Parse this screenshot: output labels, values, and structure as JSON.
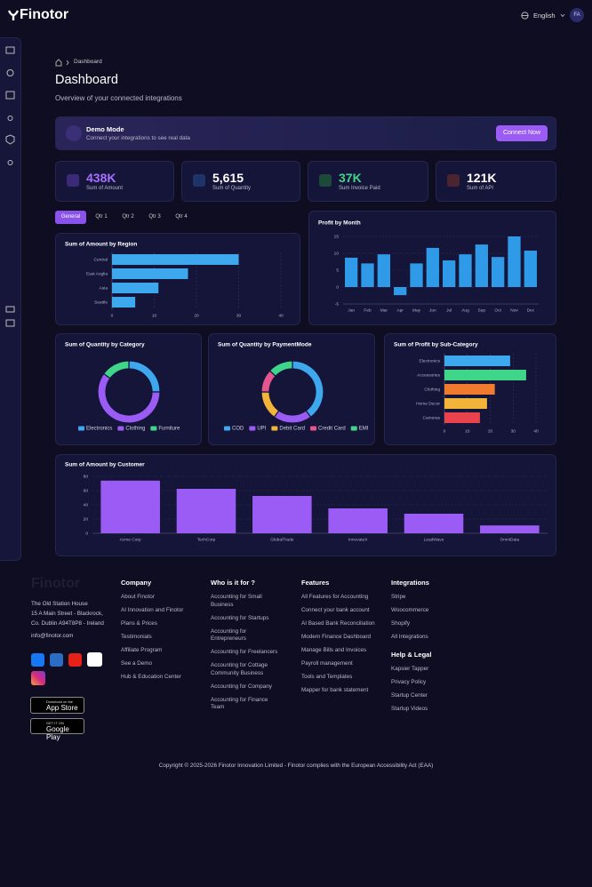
{
  "header": {
    "logo": "Finotor",
    "language": "English",
    "avatar": "FA"
  },
  "breadcrumb": "Dashboard",
  "page": {
    "title": "Dashboard",
    "subtitle": "Overview of your connected integrations"
  },
  "demo": {
    "title": "Demo Mode",
    "text": "Connect your integrations to see real data",
    "button": "Connect Now"
  },
  "kpis": [
    {
      "value": "438K",
      "label": "Sum of Amount",
      "color": "#a970ff"
    },
    {
      "value": "5,615",
      "label": "Sum of Quantity",
      "color": "#ffffff"
    },
    {
      "value": "37K",
      "label": "Sum Invoice Paid",
      "color": "#3fd68a"
    },
    {
      "value": "121K",
      "label": "Sum of API",
      "color": "#ffffff"
    }
  ],
  "tabs": [
    "General",
    "Qtr 1",
    "Qtr 2",
    "Qtr 3",
    "Qtr 4"
  ],
  "chart_data": [
    {
      "type": "bar",
      "horizontal": true,
      "title": "Sum of Amount by Region",
      "categories": [
        "Central",
        "East Anglia",
        "Asia",
        "Seattle"
      ],
      "values": [
        30,
        18,
        11,
        5.5
      ],
      "color": "#3ea8ee",
      "xlim": [
        0,
        40
      ],
      "xticks": [
        0,
        10,
        20,
        30,
        40
      ],
      "grid": true
    },
    {
      "type": "bar",
      "title": "Profit by Month",
      "categories": [
        "Jan",
        "Feb",
        "Mar",
        "Apr",
        "May",
        "Jun",
        "Jul",
        "Aug",
        "Sep",
        "Oct",
        "Nov",
        "Dec"
      ],
      "values": [
        8.7,
        7,
        9.7,
        -2.4,
        7,
        11.6,
        7.9,
        9.7,
        12.6,
        8.9,
        15,
        10.8
      ],
      "color": "#2f9be8",
      "ylim": [
        -5,
        15
      ],
      "yticks": [
        -5,
        0,
        5,
        10,
        15
      ],
      "grid": true
    },
    {
      "type": "donut",
      "title": "Sum of Quantity by Category",
      "categories": [
        "Electronics",
        "Clothing",
        "Furniture"
      ],
      "values": [
        25,
        60,
        15
      ],
      "colors": [
        "#3ea8ee",
        "#9b5cf5",
        "#3fd68a"
      ]
    },
    {
      "type": "donut",
      "title": "Sum of Quantity by PaymentMode",
      "categories": [
        "COD",
        "UPI",
        "Debit Card",
        "Credit Card",
        "EMI"
      ],
      "values": [
        40,
        20,
        15,
        12,
        13
      ],
      "colors": [
        "#3ea8ee",
        "#9b5cf5",
        "#f2b53a",
        "#e5558f",
        "#3fd68a"
      ]
    },
    {
      "type": "bar",
      "horizontal": true,
      "title": "Sum of Profit by Sub-Category",
      "categories": [
        "Electronics",
        "Accessories",
        "Clothing",
        "Home Decor",
        "Cameras"
      ],
      "values": [
        28.7,
        35.7,
        22,
        18.6,
        15.5
      ],
      "colors": [
        "#3ea8ee",
        "#3fd68a",
        "#f07a2e",
        "#f2b53a",
        "#e8434d"
      ],
      "xlim": [
        0,
        40
      ],
      "xticks": [
        0,
        10,
        20,
        30,
        40
      ],
      "grid": true
    },
    {
      "type": "bar",
      "title": "Sum of Amount by Customer",
      "categories": [
        "Acme Corp",
        "TechCorp",
        "GlobalTrade",
        "InnovateX",
        "LeadWave",
        "OmniData"
      ],
      "values": [
        74,
        62.5,
        52.5,
        35,
        27.5,
        11
      ],
      "color": "#9b5cf5",
      "ylim": [
        0,
        80
      ],
      "yticks": [
        0,
        20,
        40,
        60,
        80
      ],
      "grid": true
    }
  ],
  "footer": {
    "logo": "Finotor",
    "address": [
      "The Old Station House",
      "15 A Main Street - Blackrock,",
      "Co. Dublin A94T8P8 - Ireland"
    ],
    "email": "info@finotor.com",
    "app_store": {
      "small": "Download on the",
      "big": "App Store"
    },
    "google_play": {
      "small": "GET IT ON",
      "big": "Google Play"
    },
    "columns": [
      {
        "title": "Company",
        "items": [
          "About Finotor",
          "AI Innovation and Finotor",
          "Plans & Prices",
          "Testimonials",
          "Affiliate Program",
          "See a Demo",
          "Hub & Education Center"
        ]
      },
      {
        "title": "Who is it for ?",
        "items": [
          "Accounting for Small Business",
          "Accounting for Startups",
          "Accounting for Entrepreneurs",
          "Accounting for Freelancers",
          "Accounting for Cottage Community Business",
          "Accounting for Company",
          "Accounting for Finance Team"
        ]
      },
      {
        "title": "Features",
        "items": [
          "All Features for Accounting",
          "Connect your bank account",
          "AI Based Bank Reconciliation",
          "Modern Finance Dashboard",
          "Manage Bills and Invoices",
          "Payroll management",
          "Tools and Templates",
          "Mapper for bank statement"
        ]
      },
      {
        "title": "Integrations",
        "items": [
          "Stripe",
          "Woocommerce",
          "Shopify",
          "All Integrations"
        ]
      },
      {
        "title": "Help & Legal",
        "items": [
          "Kapsier Tapper",
          "Privacy Policy",
          "Startup Center",
          "Startup Videos"
        ]
      }
    ],
    "copyright": "Copyright © 2025-2026 Finotor Innovation Limited - Finotor complies with the European Accessibility Act (EAA)"
  }
}
